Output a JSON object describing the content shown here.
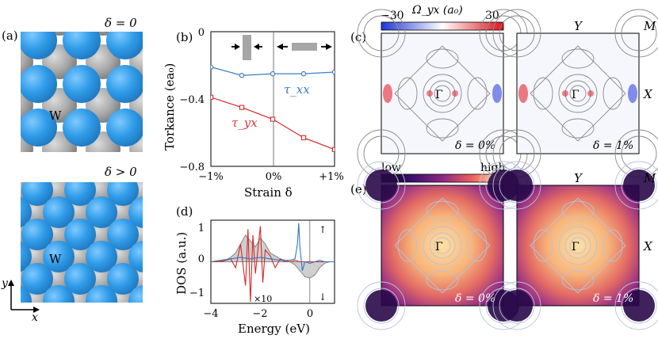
{
  "panels": {
    "a": {
      "label": "(a)",
      "top_delta": "δ = 0",
      "bottom_delta": "δ > 0",
      "atom_label": "W",
      "axis_y": "y",
      "axis_x": "x",
      "colors": {
        "blue_atom": "#2f9be8",
        "gray_atom": "#9a9a9a",
        "bg": "#ffffff"
      }
    },
    "b": {
      "label": "(b)",
      "ylabel": "Torkance (ea₀)",
      "xlabel": "Strain δ",
      "yticks": [
        "0",
        "−0.4",
        "−0.8"
      ],
      "xticks": [
        "−1%",
        "0%",
        "+1%"
      ],
      "tau_xx_label": "τ_xx",
      "tau_yx_label": "τ_yx"
    },
    "c": {
      "label": "(c)",
      "colorbar_title": "Ω_yx (a₀)",
      "colorbar_min": "−30",
      "colorbar_max": "30",
      "left_delta": "δ = 0%",
      "right_delta": "δ = 1%",
      "gamma": "Γ",
      "X": "X",
      "Y": "Y",
      "M": "M"
    },
    "d": {
      "label": "(d)",
      "ylabel": "DOS (a.u.)",
      "xlabel": "Energy (eV)",
      "xticks": [
        "−4",
        "−2",
        "0"
      ],
      "yticks": [
        "1",
        "0",
        "−1"
      ],
      "scale_note": "×10",
      "up_arrow": "↑",
      "down_arrow": "↓"
    },
    "e": {
      "label": "(e)",
      "colorbar_min": "low",
      "colorbar_max": "high",
      "left_delta": "δ = 0%",
      "right_delta": "δ = 1%",
      "gamma": "Γ",
      "X": "X",
      "Y": "Y",
      "M": "M"
    }
  },
  "chart_data": [
    {
      "type": "line",
      "title": "(b)",
      "xlabel": "Strain δ",
      "ylabel": "Torkance (ea₀)",
      "xlim": [
        -1,
        1
      ],
      "ylim": [
        -0.8,
        0
      ],
      "series": [
        {
          "name": "τ_xx",
          "color": "#3a7fc4",
          "marker": "circle",
          "x": [
            -1,
            -0.5,
            0,
            0.5,
            1
          ],
          "values": [
            -0.21,
            -0.26,
            -0.25,
            -0.25,
            -0.24
          ]
        },
        {
          "name": "τ_yx",
          "color": "#d93a3a",
          "marker": "square",
          "x": [
            -1,
            -0.5,
            0,
            0.5,
            1
          ],
          "values": [
            -0.39,
            -0.45,
            -0.52,
            -0.63,
            -0.7
          ]
        }
      ]
    },
    {
      "type": "line",
      "title": "(d)",
      "xlabel": "Energy (eV)",
      "ylabel": "DOS (a.u.)",
      "xlim": [
        -4,
        1
      ],
      "ylim": [
        -1.4,
        1.4
      ],
      "series": [
        {
          "name": "gray (×10)",
          "color": "#8c8c8c",
          "x": [
            -4,
            -3.8,
            -3.6,
            -3.4,
            -3.2,
            -3.0,
            -2.8,
            -2.6,
            -2.4,
            -2.2,
            -2.0,
            -1.8,
            -1.6,
            -1.4,
            -1.2,
            -1.0,
            -0.8,
            -0.6,
            -0.4,
            -0.2,
            0.0,
            0.2,
            0.4,
            0.6,
            0.8,
            1.0
          ],
          "values": [
            0.0,
            0.02,
            0.03,
            0.05,
            0.15,
            0.3,
            0.6,
            0.9,
            0.7,
            0.5,
            0.8,
            0.6,
            0.3,
            0.2,
            0.1,
            0.05,
            0.0,
            -0.1,
            -0.3,
            -0.5,
            -0.55,
            -0.45,
            -0.2,
            -0.05,
            0.0,
            0.0
          ]
        },
        {
          "name": "red",
          "color": "#d42a2a",
          "x": [
            -4,
            -3.6,
            -3.2,
            -3.0,
            -2.8,
            -2.6,
            -2.5,
            -2.4,
            -2.3,
            -2.2,
            -2.0,
            -1.9,
            -1.8,
            -1.6,
            -1.4,
            -1.2,
            -1.0,
            -0.8,
            -0.6,
            -0.4,
            -0.2,
            0.0,
            0.4,
            0.8,
            1.0
          ],
          "values": [
            0.0,
            0.0,
            0.1,
            -0.2,
            0.6,
            -0.8,
            1.1,
            -1.35,
            0.9,
            -0.4,
            1.2,
            -0.7,
            0.4,
            0.2,
            -0.2,
            0.1,
            0.0,
            0.0,
            0.05,
            0.0,
            0.0,
            0.0,
            0.0,
            0.0,
            0.0
          ]
        },
        {
          "name": "blue",
          "color": "#3377c0",
          "x": [
            -4,
            -3.6,
            -3.2,
            -2.8,
            -2.4,
            -2.0,
            -1.6,
            -1.2,
            -0.8,
            -0.6,
            -0.5,
            -0.45,
            -0.4,
            -0.3,
            -0.2,
            0.0,
            0.2,
            0.4,
            0.6,
            0.8,
            1.0
          ],
          "values": [
            0.0,
            0.05,
            0.1,
            0.15,
            0.1,
            0.15,
            0.1,
            0.05,
            0.05,
            0.1,
            0.6,
            1.3,
            0.5,
            -0.3,
            0.0,
            -0.05,
            0.0,
            0.05,
            0.0,
            0.0,
            0.0
          ]
        }
      ]
    }
  ]
}
